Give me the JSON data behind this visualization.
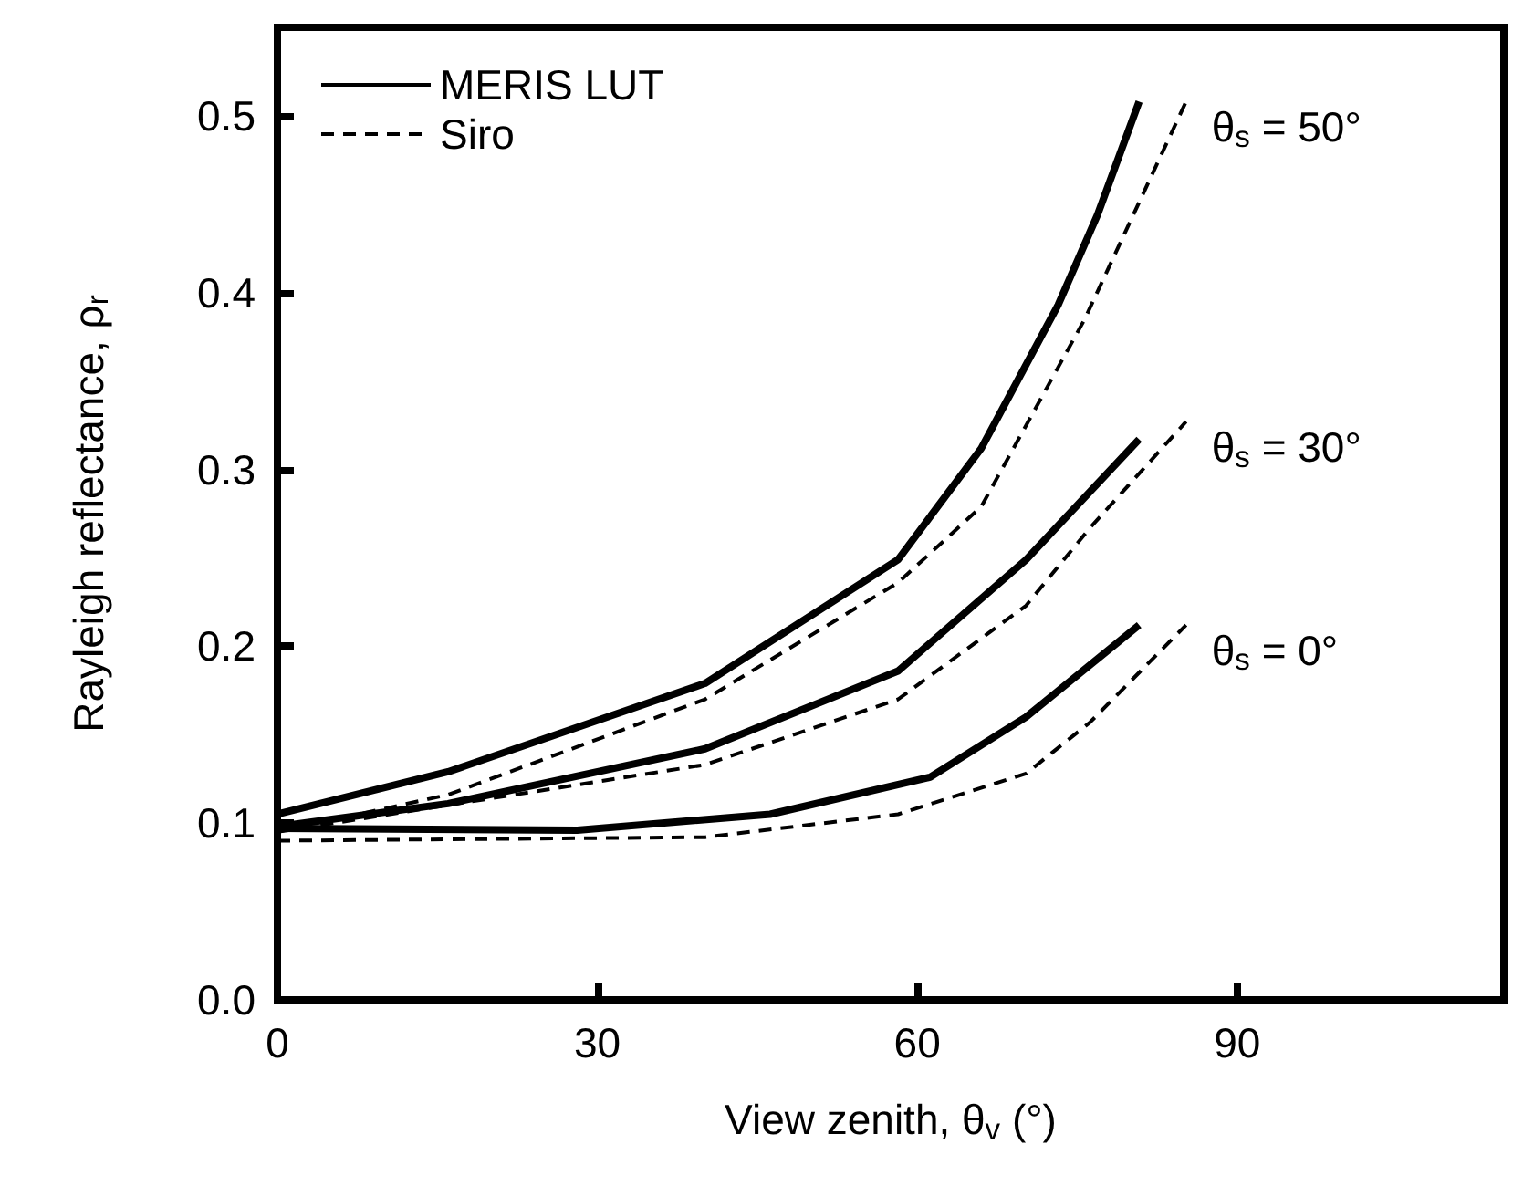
{
  "chart_data": {
    "type": "line",
    "xlabel": "View zenith, θ$_{v}$ (°)",
    "ylabel": "Rayleigh reflectance, ρ$_{r}$",
    "xlim": [
      0,
      115
    ],
    "xticks": [
      0,
      30,
      60,
      90
    ],
    "ylim": [
      0,
      0.55
    ],
    "yticks": [
      {
        "value": 0,
        "label": "0.0"
      },
      0.1,
      0.2,
      0.3,
      0.4,
      0.5
    ],
    "legend": "top left",
    "grid": false,
    "marker": "none",
    "series": [
      {
        "name": "MERIS LUT",
        "color": "#000000",
        "line_style": "solid",
        "x": [
          0,
          16,
          40.1,
          58.2,
          66,
          73.2,
          76.9,
          80.8
        ],
        "values": [
          0.105,
          0.129,
          0.179,
          0.249,
          0.312,
          0.393,
          0.444,
          0.508
        ]
      },
      {
        "name": "Siro",
        "color": "#000000",
        "line_style": "dashed",
        "x": [
          0,
          16,
          40.1,
          58.2,
          66,
          75.7,
          85.2
        ],
        "values": [
          0.095,
          0.116,
          0.17,
          0.236,
          0.279,
          0.385,
          0.508
        ]
      },
      {
        "color": "#000000",
        "line_style": "solid",
        "x": [
          0,
          16,
          40.1,
          58.2,
          70.2,
          80.8
        ],
        "values": [
          0.098,
          0.111,
          0.142,
          0.186,
          0.249,
          0.317
        ]
      },
      {
        "color": "#000000",
        "line_style": "dashed",
        "x": [
          0,
          40.1,
          58.2,
          70.2,
          76.2,
          85.2
        ],
        "values": [
          0.095,
          0.133,
          0.17,
          0.223,
          0.267,
          0.327
        ]
      },
      {
        "color": "#000000",
        "line_style": "solid",
        "x": [
          0,
          28.1,
          46.2,
          61.2,
          70.2,
          80.8
        ],
        "values": [
          0.097,
          0.096,
          0.105,
          0.126,
          0.16,
          0.212
        ]
      },
      {
        "color": "#000000",
        "line_style": "dashed",
        "x": [
          0,
          40.1,
          58.2,
          70.2,
          76.2,
          85.2
        ],
        "values": [
          0.09,
          0.092,
          0.105,
          0.128,
          0.157,
          0.212
        ]
      }
    ],
    "annotations": [
      "θ$_{s}$ = 50°",
      "θ$_{s}$ = 30°",
      "θ$_{s}$ = 0°"
    ]
  }
}
